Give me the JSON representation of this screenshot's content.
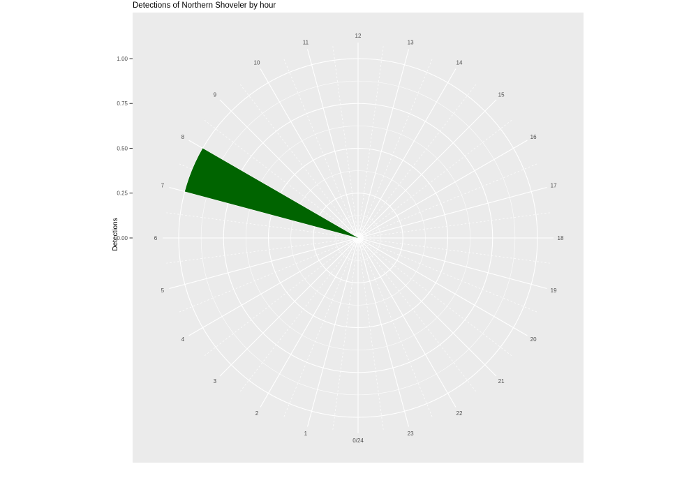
{
  "chart_data": {
    "type": "bar",
    "coordinate_system": "polar",
    "title": "Detections of Northern Shoveler by hour",
    "xlabel": "",
    "ylabel": "Detections",
    "categories": [
      0,
      1,
      2,
      3,
      4,
      5,
      6,
      7,
      8,
      9,
      10,
      11,
      12,
      13,
      14,
      15,
      16,
      17,
      18,
      19,
      20,
      21,
      22,
      23
    ],
    "category_labels": [
      "0/24",
      "1",
      "2",
      "3",
      "4",
      "5",
      "6",
      "7",
      "8",
      "9",
      "10",
      "11",
      "12",
      "13",
      "14",
      "15",
      "16",
      "17",
      "18",
      "19",
      "20",
      "21",
      "22",
      "23"
    ],
    "values": [
      0,
      0,
      0,
      0,
      0,
      0,
      0,
      1.0,
      0,
      0,
      0,
      0,
      0,
      0,
      0,
      0,
      0,
      0,
      0,
      0,
      0,
      0,
      0,
      0
    ],
    "bars": [
      {
        "hour_start": 7,
        "hour_end": 8,
        "value": 1.0
      }
    ],
    "ylim": [
      0,
      1
    ],
    "r_axis": {
      "tick_labels": [
        "1.00",
        "0.75",
        "0.50",
        "0.25",
        "0.00"
      ],
      "tick_values": [
        1.0,
        0.75,
        0.5,
        0.25,
        0.0
      ],
      "minor_values": [
        0.125,
        0.375,
        0.625,
        0.875
      ]
    },
    "theta_axis": {
      "top_hour": 12,
      "direction": "clockwise",
      "hours_per_revolution": 24,
      "minor_step_hours": 0.5
    },
    "grid": true,
    "legend_position": "none",
    "colors": {
      "bar": "#006400",
      "panel_bg": "#EBEBEB",
      "grid_major": "#FFFFFF",
      "grid_minor": "#FFFFFF",
      "axis_text": "#4D4D4D",
      "tick_mark": "#333333",
      "title_text": "#000000",
      "axis_title_text": "#000000",
      "page_bg": "#FFFFFF"
    }
  }
}
